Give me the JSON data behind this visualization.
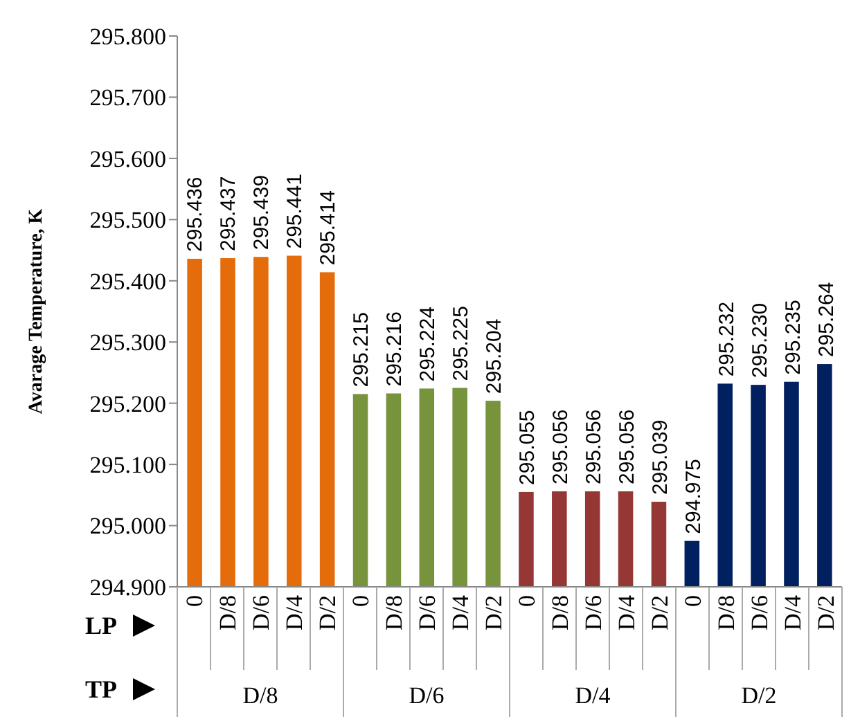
{
  "chart_data": {
    "type": "bar",
    "ylabel": "Avarage Temperature, K",
    "categories": [
      "0",
      "D/8",
      "D/6",
      "D/4",
      "D/2",
      "0",
      "D/8",
      "D/6",
      "D/4",
      "D/2",
      "0",
      "D/8",
      "D/6",
      "D/4",
      "D/2",
      "0",
      "D/8",
      "D/6",
      "D/4",
      "D/2"
    ],
    "values": [
      295.436,
      295.437,
      295.439,
      295.441,
      295.414,
      295.215,
      295.216,
      295.224,
      295.225,
      295.204,
      295.055,
      295.056,
      295.056,
      295.056,
      295.039,
      294.975,
      295.232,
      295.23,
      295.235,
      295.264
    ],
    "colors": [
      "#e46c0a",
      "#e46c0a",
      "#e46c0a",
      "#e46c0a",
      "#e46c0a",
      "#77933c",
      "#77933c",
      "#77933c",
      "#77933c",
      "#77933c",
      "#953735",
      "#953735",
      "#953735",
      "#953735",
      "#953735",
      "#002060",
      "#002060",
      "#002060",
      "#002060",
      "#002060"
    ],
    "ylim": [
      294.9,
      295.8
    ],
    "yticks": [
      {
        "value": 294.9,
        "label": "294.900"
      },
      {
        "value": 295.0,
        "label": "295.000"
      },
      {
        "value": 295.1,
        "label": "295.100"
      },
      {
        "value": 295.2,
        "label": "295.200"
      },
      {
        "value": 295.3,
        "label": "295.300"
      },
      {
        "value": 295.4,
        "label": "295.400"
      },
      {
        "value": 295.5,
        "label": "295.500"
      },
      {
        "value": 295.6,
        "label": "295.600"
      },
      {
        "value": 295.7,
        "label": "295.700"
      },
      {
        "value": 295.8,
        "label": "295.800"
      }
    ],
    "value_labels": [
      "295.436",
      "295.437",
      "295.439",
      "295.441",
      "295.414",
      "295.215",
      "295.216",
      "295.224",
      "295.225",
      "295.204",
      "295.055",
      "295.056",
      "295.056",
      "295.056",
      "295.039",
      "294.975",
      "295.232",
      "295.230",
      "295.235",
      "295.264"
    ],
    "grid": false,
    "annotations": [
      "LP",
      "TP",
      "D/8",
      "D/6",
      "D/4",
      "D/2"
    ]
  }
}
